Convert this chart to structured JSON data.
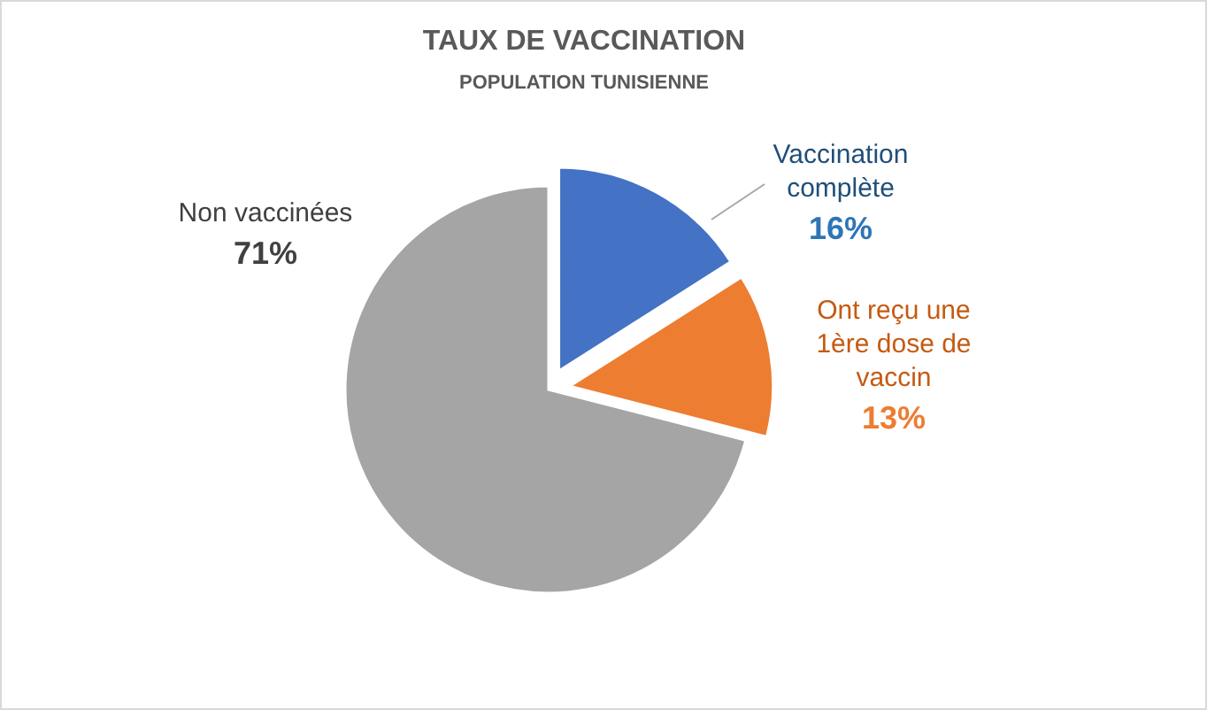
{
  "chart_data": {
    "type": "pie",
    "title": "TAUX DE VACCINATION",
    "subtitle": "POPULATION TUNISIENNE",
    "categories": [
      "Vaccination complète",
      "Ont reçu une 1ère dose de vaccin",
      "Non vaccinées"
    ],
    "values": [
      16,
      13,
      71
    ],
    "colors": [
      "#4472c4",
      "#ed7d31",
      "#a5a5a5"
    ],
    "value_labels": [
      "16%",
      "13%",
      "71%"
    ],
    "legend": false
  }
}
